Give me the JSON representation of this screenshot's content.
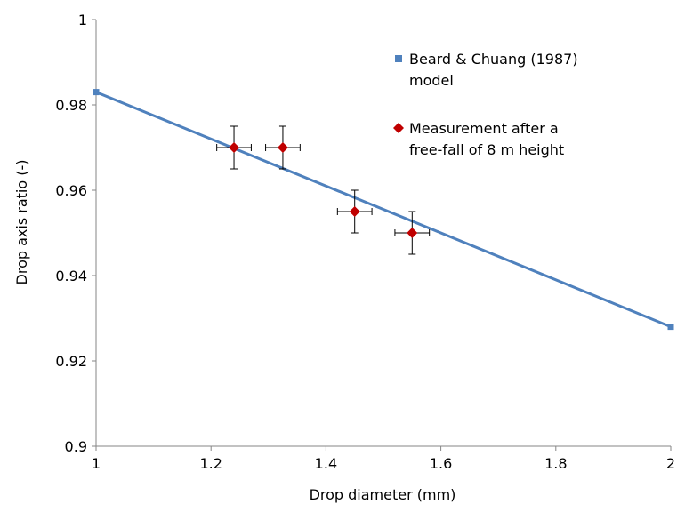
{
  "chart_data": {
    "type": "scatter",
    "title": "",
    "xlabel": "Drop diameter (mm)",
    "ylabel": "Drop axis ratio (-)",
    "xlim": [
      1,
      2
    ],
    "ylim": [
      0.9,
      1
    ],
    "xticks": [
      1,
      1.2,
      1.4,
      1.6,
      1.8,
      2
    ],
    "xtick_labels": [
      "1",
      "1.2",
      "1.4",
      "1.6",
      "1.8",
      "2"
    ],
    "yticks": [
      0.9,
      0.92,
      0.94,
      0.96,
      0.98,
      1
    ],
    "ytick_labels": [
      "0.9",
      "0.92",
      "0.94",
      "0.96",
      "0.98",
      "1"
    ],
    "grid": false,
    "legend_position": "top-right",
    "series": [
      {
        "name": "Beard & Chuang (1987) model",
        "legend_lines": [
          "Beard & Chuang (1987)",
          "model"
        ],
        "kind": "line",
        "color": "#4f81bd",
        "marker": "square",
        "x": [
          1,
          2
        ],
        "y": [
          0.983,
          0.928
        ]
      },
      {
        "name": "Measurement after a free-fall of 8 m height",
        "legend_lines": [
          "Measurement after a",
          "free-fall of 8 m height"
        ],
        "kind": "scatter",
        "color": "#c00000",
        "marker": "diamond",
        "x": [
          1.24,
          1.325,
          1.45,
          1.55
        ],
        "y": [
          0.97,
          0.97,
          0.955,
          0.95
        ],
        "x_error": [
          0.03,
          0.03,
          0.03,
          0.03
        ],
        "y_error": [
          0.005,
          0.005,
          0.005,
          0.005
        ]
      }
    ]
  }
}
